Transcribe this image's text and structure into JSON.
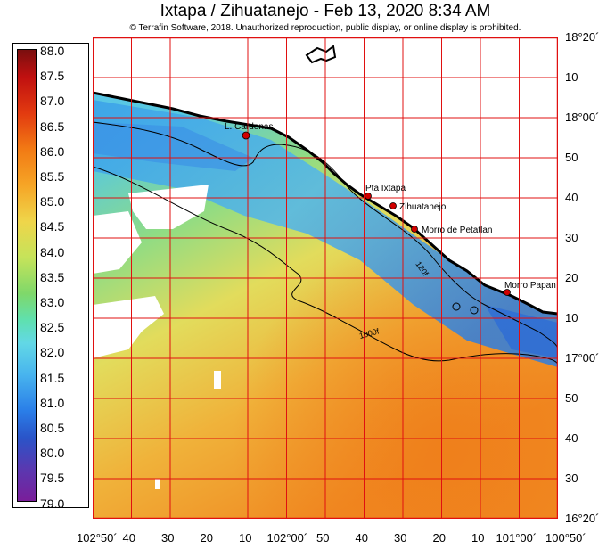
{
  "title": "Ixtapa / Zihuatanejo - Feb 13, 2020 8:34 AM",
  "copyright": "© Terrafin Software,  2018.  Unauthorized reproduction, public display, or online display is prohibited.",
  "colorbar": {
    "labels": [
      "88.0",
      "87.5",
      "87.0",
      "86.5",
      "86.0",
      "85.5",
      "85.0",
      "84.5",
      "84.0",
      "83.5",
      "83.0",
      "82.5",
      "82.0",
      "81.5",
      "81.0",
      "80.5",
      "80.0",
      "79.5",
      "79.0"
    ],
    "min": 79.0,
    "max": 88.0,
    "colors": [
      "#7a0f0f",
      "#e23a10",
      "#f6a526",
      "#efd54a",
      "#7fd86a",
      "#62d8e6",
      "#2a7ee8",
      "#7a1e9a"
    ]
  },
  "lat_labels": [
    "18°20´",
    "10",
    "18°00´",
    "50",
    "40",
    "30",
    "20",
    "10",
    "17°00´",
    "50",
    "40",
    "30",
    "16°20´"
  ],
  "lon_labels": [
    "102°50´",
    "40",
    "30",
    "20",
    "10",
    "102°00´",
    "50",
    "40",
    "30",
    "20",
    "10",
    "101°00´",
    "100°50´"
  ],
  "places": [
    {
      "name": "L. Cardenas"
    },
    {
      "name": "Pta Ixtapa"
    },
    {
      "name": "Zihuatanejo"
    },
    {
      "name": "Morro de Petatlan"
    },
    {
      "name": "Morro Papan"
    }
  ],
  "contours": [
    {
      "label": "120f"
    },
    {
      "label": "1000f"
    }
  ],
  "colors": {
    "grid": "#e01010",
    "land": "#ffffff",
    "coast": "#000000",
    "marker": "#d00000"
  }
}
